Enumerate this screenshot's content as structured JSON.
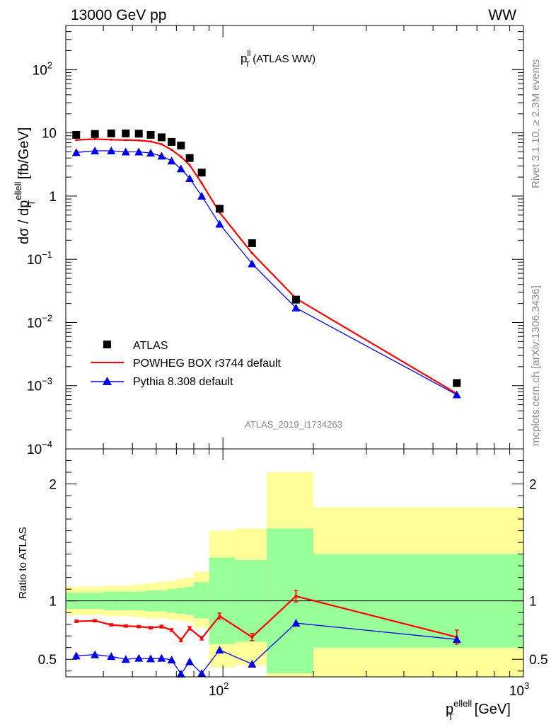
{
  "header": {
    "left": "13000 GeV pp",
    "right": "WW"
  },
  "side_labels": {
    "rivet": "Rivet 3.1.10, ≥ 2.3M events",
    "mcplots": "mcplots.cern.ch [arXiv:1306.3436]"
  },
  "watermark": "ATLAS_2019_I1734263",
  "plot_title": {
    "main": "p",
    "sup": "ll",
    "sub": "T",
    "rest": " (ATLAS WW)"
  },
  "colors": {
    "atlas": "#000000",
    "powheg": "#ff0000",
    "pythia": "#0000e6",
    "band_inner": "#99ff99",
    "band_outer": "#ffff99"
  },
  "chart_data": [
    {
      "type": "scatter",
      "xscale": "log",
      "yscale": "log",
      "xlim": [
        30,
        1000
      ],
      "ylim": [
        0.0001,
        500
      ],
      "ylabel": "dσ / dp_T^{ellell} [fb/GeV]",
      "ylabel_parts": {
        "pre": "dσ / dp",
        "sup": "ellell",
        "sub": "T",
        "post": " [fb/GeV]"
      },
      "yticks": [
        {
          "v": 0.0001,
          "base": "10",
          "exp": "−4"
        },
        {
          "v": 0.001,
          "base": "10",
          "exp": "−3"
        },
        {
          "v": 0.01,
          "base": "10",
          "exp": "−2"
        },
        {
          "v": 0.1,
          "base": "10",
          "exp": "−1"
        },
        {
          "v": 1,
          "base": "1",
          "exp": ""
        },
        {
          "v": 10,
          "base": "10",
          "exp": ""
        },
        {
          "v": 100,
          "base": "10",
          "exp": "2"
        }
      ],
      "legend": [
        {
          "label": "ATLAS",
          "marker": "square"
        },
        {
          "label": "POWHEG BOX r3744 default",
          "marker": "line"
        },
        {
          "label": "Pythia 8.308 default",
          "marker": "triangle"
        }
      ],
      "legend_position": "bottom-left",
      "series": [
        {
          "name": "ATLAS",
          "x": [
            32.5,
            37.5,
            42.5,
            47.5,
            52.5,
            57.5,
            62.5,
            67.5,
            72.5,
            77.5,
            85,
            97.5,
            125,
            175,
            600
          ],
          "y": [
            9.3,
            9.6,
            9.8,
            9.8,
            9.7,
            9.3,
            8.5,
            7.2,
            6.3,
            4.0,
            2.35,
            0.63,
            0.18,
            0.023,
            0.0011
          ]
        },
        {
          "name": "POWHEG BOX r3744 default",
          "x": [
            32.5,
            37.5,
            42.5,
            47.5,
            52.5,
            57.5,
            62.5,
            67.5,
            72.5,
            77.5,
            85,
            97.5,
            125,
            175,
            600
          ],
          "y": [
            7.7,
            8.0,
            7.8,
            7.7,
            7.6,
            7.3,
            6.6,
            5.4,
            4.2,
            3.1,
            1.6,
            0.55,
            0.125,
            0.024,
            0.00075
          ]
        },
        {
          "name": "Pythia 8.308 default",
          "x": [
            32.5,
            37.5,
            42.5,
            47.5,
            52.5,
            57.5,
            62.5,
            67.5,
            72.5,
            77.5,
            85,
            97.5,
            125,
            175,
            600
          ],
          "y": [
            4.9,
            5.2,
            5.2,
            5.0,
            5.0,
            4.8,
            4.3,
            3.6,
            2.7,
            1.9,
            1.0,
            0.36,
            0.085,
            0.017,
            0.00072
          ]
        }
      ]
    },
    {
      "type": "line",
      "xscale": "log",
      "xlim": [
        30,
        1000
      ],
      "ylim": [
        0.35,
        2.3
      ],
      "xlabel": "p_T^{ellell} [GeV]",
      "xlabel_parts": {
        "pre": "p",
        "sup": "ellell",
        "sub": "T",
        "post": " [GeV]"
      },
      "ylabel": "Ratio to ATLAS",
      "yticks": [
        {
          "v": 0.5,
          "label": "0.5"
        },
        {
          "v": 1,
          "label": "1"
        },
        {
          "v": 2,
          "label": "2"
        }
      ],
      "xticks": [
        {
          "v": 100,
          "base": "10",
          "exp": "2"
        },
        {
          "v": 1000,
          "base": "10",
          "exp": "3"
        }
      ],
      "bands": [
        {
          "x0": 30,
          "x1": 35,
          "inner": [
            0.93,
            1.07
          ],
          "outer": [
            0.88,
            1.12
          ]
        },
        {
          "x0": 35,
          "x1": 40,
          "inner": [
            0.93,
            1.07
          ],
          "outer": [
            0.88,
            1.12
          ]
        },
        {
          "x0": 40,
          "x1": 45,
          "inner": [
            0.92,
            1.08
          ],
          "outer": [
            0.87,
            1.13
          ]
        },
        {
          "x0": 45,
          "x1": 50,
          "inner": [
            0.92,
            1.08
          ],
          "outer": [
            0.87,
            1.13
          ]
        },
        {
          "x0": 50,
          "x1": 55,
          "inner": [
            0.92,
            1.08
          ],
          "outer": [
            0.86,
            1.14
          ]
        },
        {
          "x0": 55,
          "x1": 60,
          "inner": [
            0.91,
            1.09
          ],
          "outer": [
            0.85,
            1.15
          ]
        },
        {
          "x0": 60,
          "x1": 65,
          "inner": [
            0.91,
            1.09
          ],
          "outer": [
            0.85,
            1.16
          ]
        },
        {
          "x0": 65,
          "x1": 70,
          "inner": [
            0.9,
            1.1
          ],
          "outer": [
            0.84,
            1.17
          ]
        },
        {
          "x0": 70,
          "x1": 75,
          "inner": [
            0.89,
            1.11
          ],
          "outer": [
            0.83,
            1.19
          ]
        },
        {
          "x0": 75,
          "x1": 80,
          "inner": [
            0.88,
            1.12
          ],
          "outer": [
            0.82,
            1.2
          ]
        },
        {
          "x0": 80,
          "x1": 90,
          "inner": [
            0.85,
            1.16
          ],
          "outer": [
            0.77,
            1.25
          ]
        },
        {
          "x0": 90,
          "x1": 110,
          "inner": [
            0.63,
            1.37
          ],
          "outer": [
            0.43,
            1.6
          ]
        },
        {
          "x0": 110,
          "x1": 140,
          "inner": [
            0.65,
            1.35
          ],
          "outer": [
            0.45,
            1.62
          ]
        },
        {
          "x0": 140,
          "x1": 200,
          "inner": [
            0.38,
            1.62
          ],
          "outer": [
            0.0,
            2.1
          ]
        },
        {
          "x0": 200,
          "x1": 1000,
          "inner": [
            0.6,
            1.4
          ],
          "outer": [
            0.2,
            1.8
          ]
        }
      ],
      "series": [
        {
          "name": "POWHEG BOX r3744 default",
          "x": [
            32.5,
            37.5,
            42.5,
            47.5,
            52.5,
            57.5,
            62.5,
            67.5,
            72.5,
            77.5,
            85,
            97.5,
            125,
            175,
            600
          ],
          "y": [
            0.825,
            0.83,
            0.795,
            0.785,
            0.78,
            0.77,
            0.78,
            0.75,
            0.665,
            0.765,
            0.68,
            0.87,
            0.69,
            1.04,
            0.69
          ],
          "err": [
            0.01,
            0.01,
            0.01,
            0.01,
            0.01,
            0.01,
            0.012,
            0.012,
            0.015,
            0.015,
            0.015,
            0.025,
            0.03,
            0.05,
            0.06
          ]
        },
        {
          "name": "Pythia 8.308 default",
          "x": [
            32.5,
            37.5,
            42.5,
            47.5,
            52.5,
            57.5,
            62.5,
            67.5,
            72.5,
            77.5,
            85,
            97.5,
            125,
            175,
            600
          ],
          "y": [
            0.53,
            0.54,
            0.525,
            0.5,
            0.51,
            0.505,
            0.51,
            0.495,
            0.375,
            0.48,
            0.38,
            0.58,
            0.46,
            0.81,
            0.67
          ],
          "err": [
            0.008,
            0.008,
            0.008,
            0.008,
            0.008,
            0.008,
            0.008,
            0.008,
            0.01,
            0.01,
            0.01,
            0.015,
            0.02,
            0.025,
            0.03
          ]
        }
      ]
    }
  ]
}
